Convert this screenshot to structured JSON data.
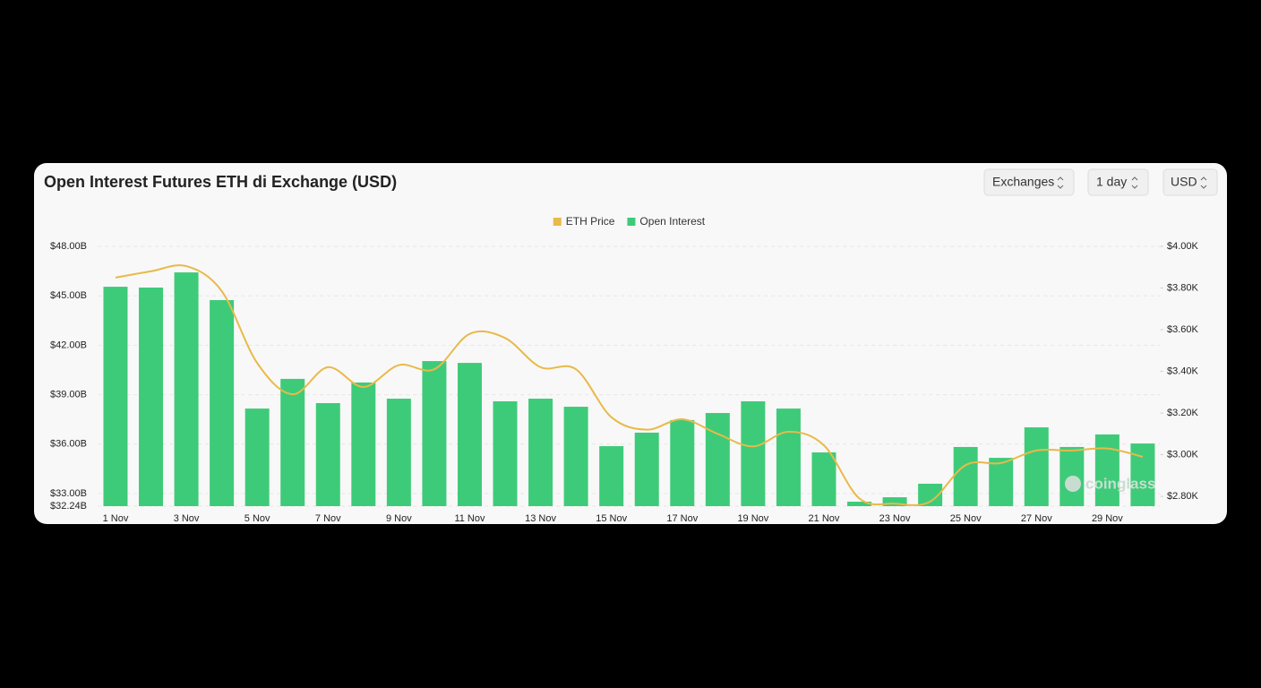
{
  "header": {
    "title": "Open Interest Futures ETH di Exchange (USD)",
    "controls": [
      "Exchanges",
      "1 day",
      "USD"
    ]
  },
  "chart_data": {
    "type": "bar",
    "categories": [
      "1 Nov",
      null,
      "3 Nov",
      null,
      "5 Nov",
      null,
      "7 Nov",
      null,
      "9 Nov",
      null,
      "11 Nov",
      null,
      "13 Nov",
      null,
      "15 Nov",
      null,
      "17 Nov",
      null,
      "19 Nov",
      null,
      "21 Nov",
      null,
      "23 Nov",
      null,
      "25 Nov",
      null,
      "27 Nov",
      null,
      "29 Nov",
      null
    ],
    "series": [
      {
        "name": "ETH Price",
        "color": "#e9b949",
        "type": "line",
        "axis": "y2",
        "values": [
          3.85,
          3.88,
          3.905,
          3.785,
          3.44,
          3.29,
          3.42,
          3.325,
          3.43,
          3.41,
          3.58,
          3.56,
          3.42,
          3.41,
          3.18,
          3.12,
          3.17,
          3.1,
          3.04,
          3.11,
          3.045,
          2.79,
          2.765,
          2.775,
          2.95,
          2.96,
          3.02,
          3.02,
          3.03,
          2.99
        ]
      },
      {
        "name": "Open Interest",
        "color": "#3ecb79",
        "values": [
          45.55,
          45.5,
          46.42,
          44.74,
          38.16,
          39.96,
          38.49,
          39.74,
          38.76,
          41.04,
          40.93,
          38.6,
          38.76,
          38.27,
          35.88,
          36.7,
          37.46,
          37.89,
          38.6,
          38.16,
          35.5,
          32.51,
          32.78,
          33.6,
          35.83,
          35.17,
          37.02,
          35.83,
          36.59,
          36.04
        ]
      }
    ],
    "ylim": [
      32.24,
      48
    ],
    "yticks": [
      {
        "value": 32.24,
        "label": "$32.24B"
      },
      {
        "value": 33,
        "label": "$33.00B"
      },
      {
        "value": 36,
        "label": "$36.00B"
      },
      {
        "value": 39,
        "label": "$39.00B"
      },
      {
        "value": 42,
        "label": "$42.00B"
      },
      {
        "value": 45,
        "label": "$45.00B"
      },
      {
        "value": 48,
        "label": "$48.00B"
      }
    ],
    "y2lim": [
      2.753,
      4
    ],
    "y2ticks": [
      {
        "value": 2.8,
        "label": "$2.80K"
      },
      {
        "value": 3,
        "label": "$3.00K"
      },
      {
        "value": 3.2,
        "label": "$3.20K"
      },
      {
        "value": 3.4,
        "label": "$3.40K"
      },
      {
        "value": 3.6,
        "label": "$3.60K"
      },
      {
        "value": 3.8,
        "label": "$3.80K"
      },
      {
        "value": 4,
        "label": "$4.00K"
      }
    ],
    "grid": true,
    "legend": "top",
    "watermark": "coinglass"
  }
}
